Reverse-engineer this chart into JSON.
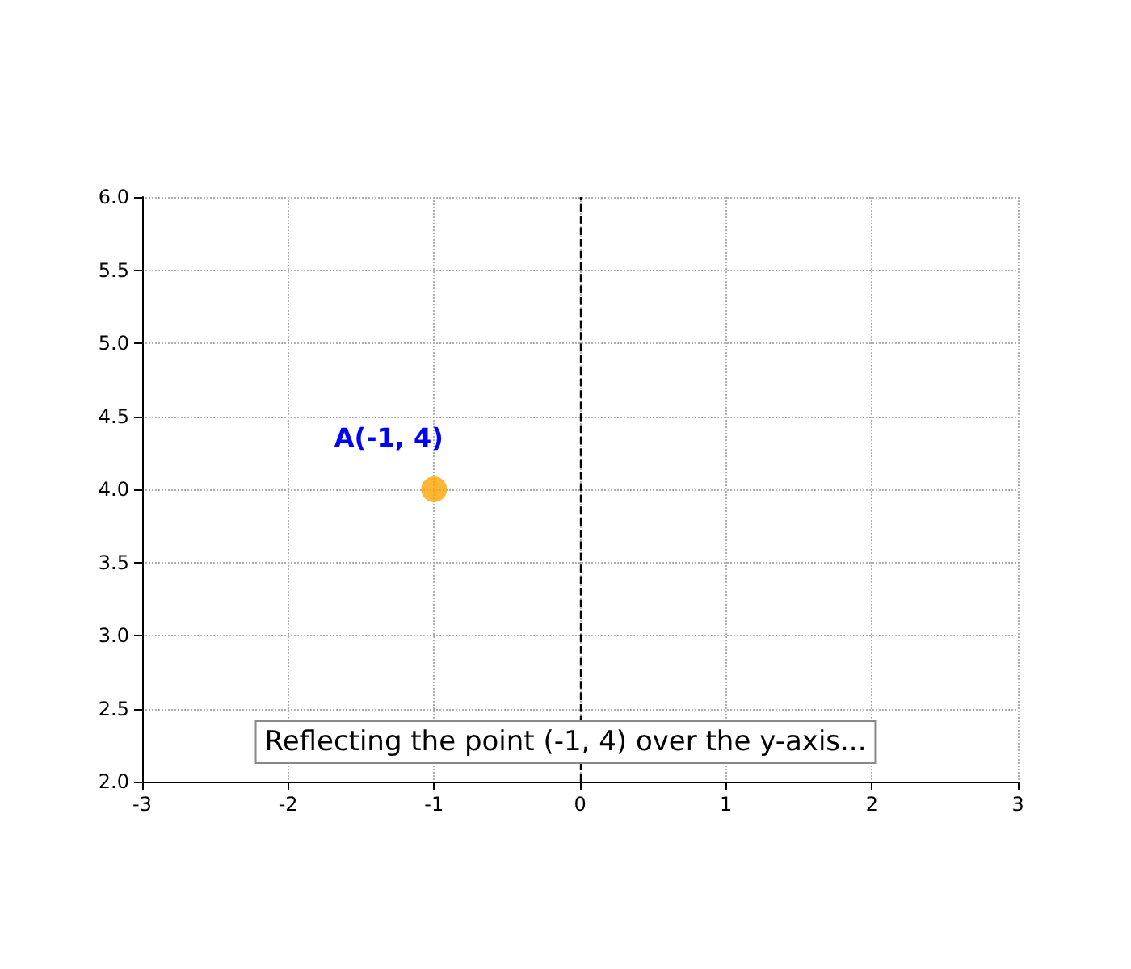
{
  "chart_data": {
    "type": "scatter",
    "x": [
      -1
    ],
    "values": [
      4
    ],
    "color": "#ffa500",
    "marker": "circle",
    "xlim": [
      -3,
      3
    ],
    "xticks": [
      -3,
      -2,
      -1,
      0,
      1,
      2,
      3
    ],
    "ylim": [
      2,
      6
    ],
    "yticks": [
      {
        "value": 2,
        "label": "2.0"
      },
      {
        "value": 2.5,
        "label": "2.5"
      },
      {
        "value": 3,
        "label": "3.0"
      },
      {
        "value": 3.5,
        "label": "3.5"
      },
      {
        "value": 4,
        "label": "4.0"
      },
      {
        "value": 4.5,
        "label": "4.5"
      },
      {
        "value": 5,
        "label": "5.0"
      },
      {
        "value": 5.5,
        "label": "5.5"
      },
      {
        "value": 6,
        "label": "6.0"
      }
    ],
    "grid": true,
    "ref_lines": [
      {
        "axis": "x",
        "value": 0,
        "color": "#000000",
        "line_style": "dashed"
      }
    ],
    "annotations": [
      {
        "text": "A(-1, 4)",
        "x": -1,
        "y": 4
      },
      "Reflecting the point (-1, 4) over the y-axis..."
    ]
  }
}
